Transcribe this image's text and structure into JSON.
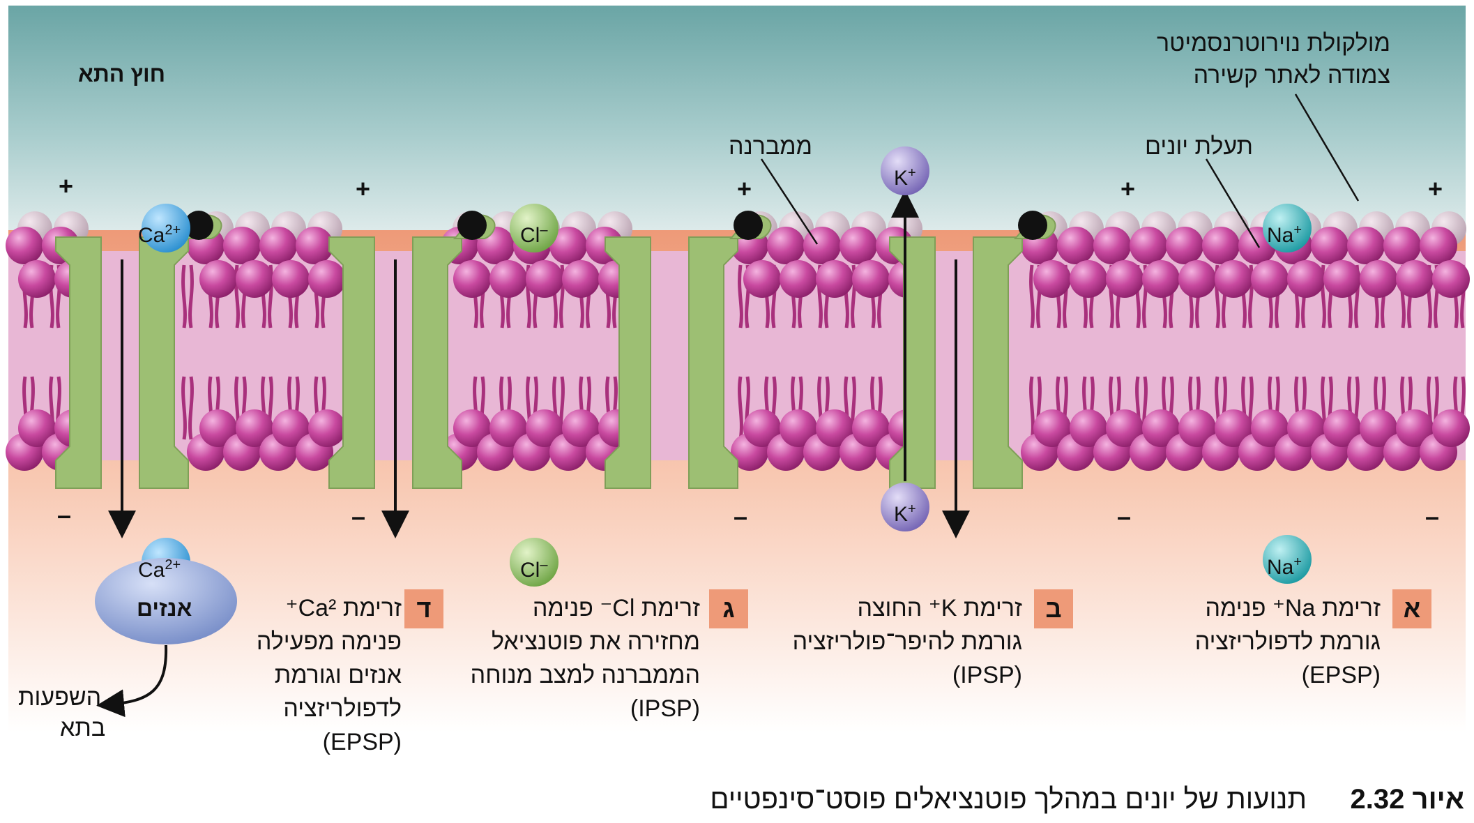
{
  "outside_label": "חוץ התא",
  "callouts": {
    "neurotransmitter": [
      "מולקולת נוירוטרנסמיטר",
      "צמודה לאתר קשירה"
    ],
    "ion_channel": "תעלת יונים",
    "membrane": "ממברנה"
  },
  "signs": {
    "plus": "+",
    "minus": "–"
  },
  "ions": {
    "ca": "Ca",
    "ca_sup": "2+",
    "cl": "Cl",
    "cl_sup": "–",
    "k": "K",
    "k_sup": "+",
    "na": "Na",
    "na_sup": "+"
  },
  "enzyme_label": "אנזים",
  "effects_label": [
    "השפעות",
    "בתא"
  ],
  "panels": [
    {
      "letter": "א",
      "lines": [
        "זרימת  Na⁺ פנימה",
        "גורמת לדפולריזציה",
        "(EPSP)"
      ]
    },
    {
      "letter": "ב",
      "lines": [
        "זרימת  K⁺ החוצה",
        "גורמת להיפר־פולריזציה",
        "(IPSP)"
      ]
    },
    {
      "letter": "ג",
      "lines": [
        "זרימת  Cl⁻ פנימה",
        "מחזירה את פוטנציאל",
        "הממברנה למצב מנוחה",
        "(IPSP)"
      ]
    },
    {
      "letter": "ד",
      "lines": [
        "זרימת  Ca²⁺",
        "פנימה מפעילה",
        "אנזים וגורמת",
        "לדפולריזציה",
        "(EPSP)"
      ]
    }
  ],
  "caption": {
    "number": "איור 2.32",
    "text": "תנועות של יונים במהלך פוטנציאלים פוסט־סינפטיים"
  },
  "colors": {
    "outside_top": "#5f9c9c",
    "outside_mid": "#d6e7e7",
    "inside": "#f2a98a",
    "lipid_head": "#c2469c",
    "lipid_tail": "#b0337f",
    "channel": "#9dbf73",
    "ca_ion": "#3fa9e0",
    "cl_ion": "#86b55c",
    "k_ion": "#8a7cc4",
    "na_ion": "#2aa9b0",
    "enzyme": "#7f95cf"
  }
}
